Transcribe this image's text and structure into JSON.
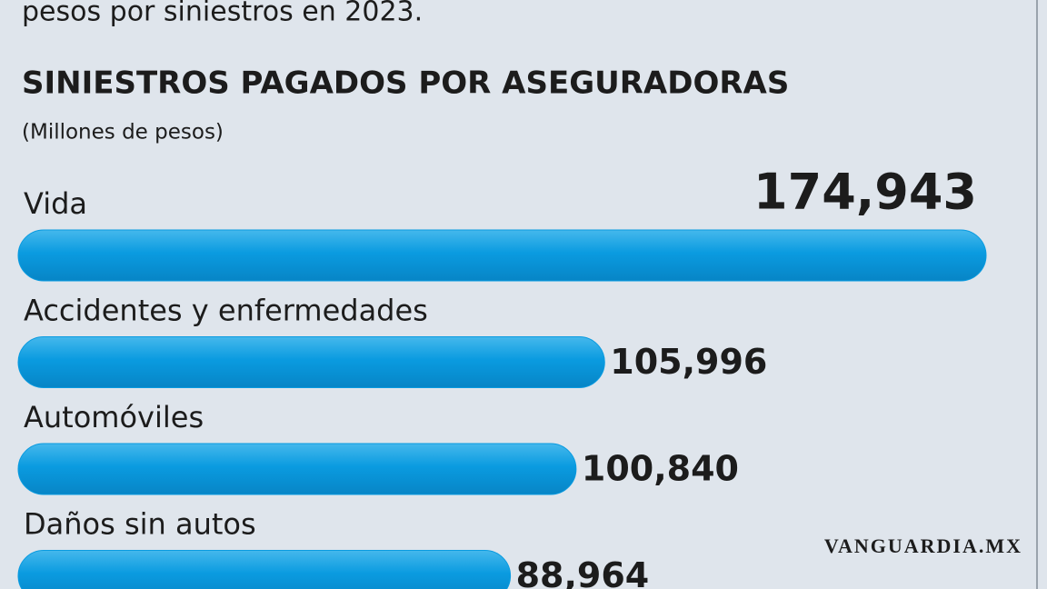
{
  "intro_text": "pesos por siniestros en 2023.",
  "watermark": "VANGUARDIA.MX",
  "chart_data": {
    "type": "bar",
    "orientation": "horizontal",
    "title": "SINIESTROS PAGADOS POR ASEGURADORAS",
    "subtitle": "(Millones de pesos)",
    "categories": [
      "Vida",
      "Accidentes y enfermedades",
      "Automóviles",
      "Daños sin autos"
    ],
    "values": [
      174943,
      105996,
      100840,
      88964
    ],
    "value_labels": [
      "174,943",
      "105,996",
      "100,840",
      "88,964"
    ],
    "color": "#0a9be0"
  }
}
